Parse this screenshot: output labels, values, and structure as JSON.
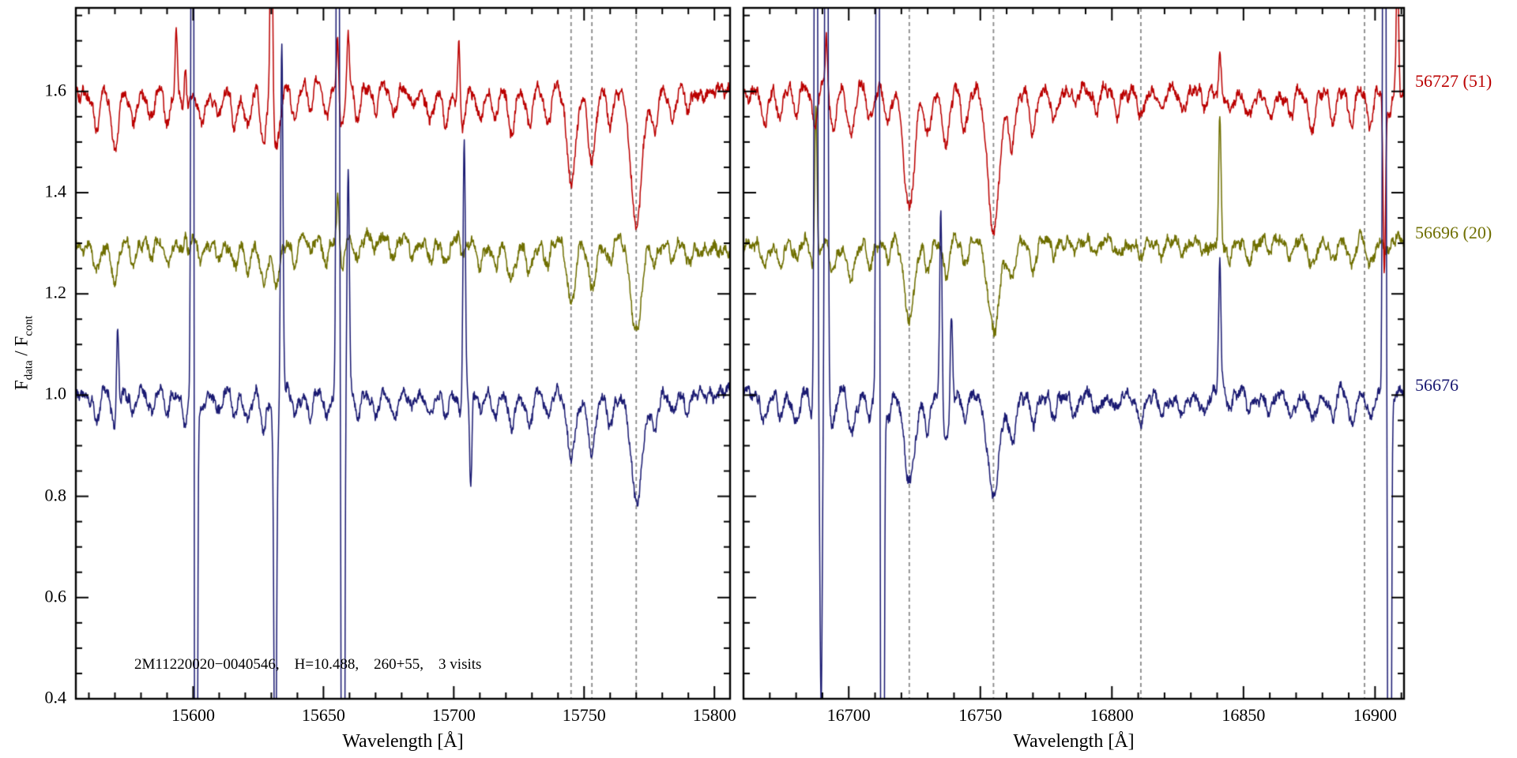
{
  "figure": {
    "ylabel_main": "F",
    "ylabel_sub1": "data",
    "ylabel_mid": " / F",
    "ylabel_sub2": "cont"
  },
  "chart_data": {
    "type": "line",
    "title": "",
    "ylabel": "F_data / F_cont",
    "ylim": [
      0.4,
      1.765
    ],
    "yticks": [
      0.4,
      0.6,
      0.8,
      1.0,
      1.2,
      1.4,
      1.6
    ],
    "annotation": "2M11220020−0040546,    H=10.488,    260+55,    3 visits",
    "legend_position": "right-outside",
    "grid": false,
    "series": [
      {
        "name": "56727 (51)",
        "color": "#bb0000",
        "offset": 1.6,
        "feature_scale": 1.3
      },
      {
        "name": "56696 (20)",
        "color": "#6f6f00",
        "offset": 1.3,
        "feature_scale": 0.85
      },
      {
        "name": "56676",
        "color": "#1a1a72",
        "offset": 1.0,
        "feature_scale": 1.0
      }
    ],
    "panels": [
      {
        "xlabel": "Wavelength [Å]",
        "xlim": [
          15555,
          15806
        ],
        "xticks": [
          15600,
          15650,
          15700,
          15750,
          15800
        ],
        "xtick_minor_step": 10,
        "marker_lines": [
          15745,
          15753,
          15770
        ],
        "features": [
          [
            15563,
            0.06,
            1.1
          ],
          [
            15570,
            0.08,
            1.2
          ],
          [
            15577,
            0.05,
            1.0
          ],
          [
            15584,
            0.04,
            1.0
          ],
          [
            15590,
            0.05,
            1.0
          ],
          [
            15597,
            0.05,
            1.0
          ],
          [
            15603,
            0.04,
            1.0
          ],
          [
            15610,
            0.04,
            1.0
          ],
          [
            15616,
            0.05,
            1.0
          ],
          [
            15621,
            0.06,
            1.2
          ],
          [
            15627,
            0.08,
            1.2
          ],
          [
            15632,
            0.09,
            1.3
          ],
          [
            15639,
            0.05,
            1.0
          ],
          [
            15645,
            0.04,
            1.0
          ],
          [
            15651,
            0.05,
            1.0
          ],
          [
            15657,
            0.06,
            1.1
          ],
          [
            15663,
            0.05,
            1.0
          ],
          [
            15670,
            0.04,
            1.0
          ],
          [
            15677,
            0.04,
            1.0
          ],
          [
            15684,
            0.03,
            1.0
          ],
          [
            15691,
            0.04,
            1.0
          ],
          [
            15697,
            0.05,
            1.0
          ],
          [
            15703,
            0.05,
            1.1
          ],
          [
            15710,
            0.04,
            1.0
          ],
          [
            15716,
            0.05,
            1.1
          ],
          [
            15722,
            0.07,
            1.3
          ],
          [
            15729,
            0.06,
            1.2
          ],
          [
            15736,
            0.05,
            1.1
          ],
          [
            15745,
            0.14,
            1.7
          ],
          [
            15753,
            0.11,
            1.5
          ],
          [
            15760,
            0.05,
            1.0
          ],
          [
            15770,
            0.2,
            2.1
          ],
          [
            15777,
            0.06,
            1.2
          ],
          [
            15784,
            0.04,
            1.0
          ],
          [
            15790,
            0.04,
            1.0
          ]
        ],
        "sky_lines": [
          [
            15571,
            0,
            0,
            0.19
          ],
          [
            15593.5,
            0.14,
            0,
            0
          ],
          [
            15597,
            0.12,
            0.05,
            0
          ],
          [
            15599.8,
            0,
            0,
            2.5
          ],
          [
            15601,
            0,
            0,
            -2.5
          ],
          [
            15630,
            0.5,
            0,
            0
          ],
          [
            15631.5,
            0,
            0,
            -0.85
          ],
          [
            15634,
            0,
            0,
            0.72
          ],
          [
            15655.5,
            0.13,
            0.1,
            2.3
          ],
          [
            15657.5,
            0,
            0,
            -2.3
          ],
          [
            15659.5,
            0.12,
            0,
            0.45
          ],
          [
            15702,
            0.15,
            0.05,
            0
          ],
          [
            15704,
            0,
            0,
            0.55
          ],
          [
            15706.5,
            0,
            0,
            -0.2
          ]
        ]
      },
      {
        "xlabel": "Wavelength [Å]",
        "xlim": [
          16660,
          16911
        ],
        "xticks": [
          16700,
          16750,
          16800,
          16850,
          16900
        ],
        "xtick_minor_step": 10,
        "marker_lines": [
          16723,
          16755,
          16811,
          16896
        ],
        "features": [
          [
            16668,
            0.05,
            1.1
          ],
          [
            16674,
            0.04,
            1.0
          ],
          [
            16680,
            0.05,
            1.1
          ],
          [
            16687,
            0.06,
            1.2
          ],
          [
            16694,
            0.07,
            1.2
          ],
          [
            16701,
            0.08,
            1.4
          ],
          [
            16708,
            0.05,
            1.1
          ],
          [
            16715,
            0.05,
            1.1
          ],
          [
            16723,
            0.17,
            2.0
          ],
          [
            16730,
            0.07,
            1.2
          ],
          [
            16737,
            0.08,
            1.3
          ],
          [
            16744,
            0.06,
            1.2
          ],
          [
            16755,
            0.21,
            2.2
          ],
          [
            16762,
            0.09,
            1.4
          ],
          [
            16770,
            0.06,
            1.2
          ],
          [
            16778,
            0.04,
            1.0
          ],
          [
            16786,
            0.03,
            1.0
          ],
          [
            16794,
            0.03,
            1.0
          ],
          [
            16802,
            0.03,
            1.0
          ],
          [
            16811,
            0.04,
            1.2
          ],
          [
            16819,
            0.03,
            1.0
          ],
          [
            16827,
            0.03,
            1.0
          ],
          [
            16835,
            0.03,
            1.0
          ],
          [
            16845,
            0.03,
            1.0
          ],
          [
            16852,
            0.03,
            1.0
          ],
          [
            16860,
            0.04,
            1.0
          ],
          [
            16868,
            0.04,
            1.0
          ],
          [
            16876,
            0.05,
            1.2
          ],
          [
            16884,
            0.05,
            1.1
          ],
          [
            16891,
            0.06,
            1.2
          ],
          [
            16898,
            0.05,
            1.1
          ],
          [
            16905,
            0.04,
            1.0
          ]
        ],
        "sky_lines": [
          [
            16687.5,
            0,
            0.32,
            2.5
          ],
          [
            16689.5,
            0,
            0,
            -0.6
          ],
          [
            16691.5,
            0.1,
            0,
            2.5
          ],
          [
            16711,
            0,
            0,
            2.6
          ],
          [
            16712.8,
            0,
            0,
            -2.6
          ],
          [
            16735,
            0,
            0,
            0.38
          ],
          [
            16739,
            0,
            0,
            0.18
          ],
          [
            16841,
            0.08,
            0.27,
            0.26
          ],
          [
            16903.5,
            -0.35,
            0,
            2.6
          ],
          [
            16905.5,
            0,
            0,
            -2.6
          ],
          [
            16908.5,
            0.25,
            0,
            0
          ]
        ]
      }
    ]
  }
}
